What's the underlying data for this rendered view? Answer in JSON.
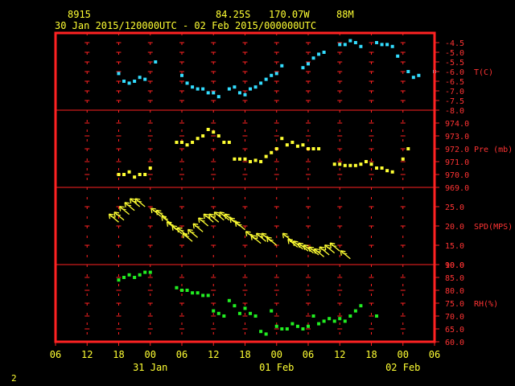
{
  "header": {
    "station_id": "8915",
    "latitude": "84.25S",
    "longitude": "170.07W",
    "elevation": "88M",
    "time_range": "30 Jan 2015/120000UTC - 02 Feb 2015/000000UTC"
  },
  "footer": {
    "page_number": "2"
  },
  "colors": {
    "frame": "#ff2222",
    "temp": "#33ddff",
    "pres": "#ffff33",
    "wind": "#ffff33",
    "rh": "#22ee22",
    "text": "#ffff33"
  },
  "chart_data": [
    {
      "type": "scatter",
      "name": "temperature",
      "ylabel": "T(C)",
      "ylim": [
        -8.0,
        -4.0
      ],
      "yticks": [
        "-4.5",
        "-5.0",
        "-5.5",
        "-6.0",
        "-6.5",
        "-7.0",
        "-7.5",
        "-8.0"
      ],
      "ytick_values": [
        -4.5,
        -5.0,
        -5.5,
        -6.0,
        -6.5,
        -7.0,
        -7.5,
        -8.0
      ],
      "color": "#33ddff",
      "points": [
        [
          12,
          -6.1
        ],
        [
          13,
          -6.5
        ],
        [
          14,
          -6.6
        ],
        [
          15,
          -6.5
        ],
        [
          16,
          -6.3
        ],
        [
          17,
          -6.4
        ],
        [
          19,
          -5.5
        ],
        [
          24,
          -6.2
        ],
        [
          25,
          -6.6
        ],
        [
          26,
          -6.8
        ],
        [
          27,
          -6.9
        ],
        [
          28,
          -6.9
        ],
        [
          29,
          -7.1
        ],
        [
          30,
          -7.1
        ],
        [
          31,
          -7.3
        ],
        [
          33,
          -6.9
        ],
        [
          34,
          -6.8
        ],
        [
          35,
          -7.1
        ],
        [
          36,
          -7.2
        ],
        [
          37,
          -6.9
        ],
        [
          38,
          -6.8
        ],
        [
          39,
          -6.6
        ],
        [
          40,
          -6.4
        ],
        [
          41,
          -6.2
        ],
        [
          42,
          -6.1
        ],
        [
          43,
          -5.7
        ],
        [
          47,
          -5.8
        ],
        [
          48,
          -5.6
        ],
        [
          49,
          -5.3
        ],
        [
          50,
          -5.1
        ],
        [
          51,
          -5.0
        ],
        [
          54,
          -4.6
        ],
        [
          55,
          -4.6
        ],
        [
          56,
          -4.4
        ],
        [
          57,
          -4.5
        ],
        [
          58,
          -4.7
        ],
        [
          61,
          -4.5
        ],
        [
          62,
          -4.6
        ],
        [
          63,
          -4.6
        ],
        [
          64,
          -4.7
        ],
        [
          65,
          -5.2
        ],
        [
          67,
          -6.0
        ],
        [
          68,
          -6.3
        ],
        [
          69,
          -6.2
        ],
        [
          72,
          -6.0
        ]
      ]
    },
    {
      "type": "scatter",
      "name": "pressure",
      "ylabel": "Pre (mb)",
      "ylim": [
        969.0,
        975.0
      ],
      "yticks": [
        "974.0",
        "973.0",
        "972.0",
        "971.0",
        "970.0",
        "969.0"
      ],
      "ytick_values": [
        974.0,
        973.0,
        972.0,
        971.0,
        970.0,
        969.0
      ],
      "color": "#ffff33",
      "points": [
        [
          12,
          970.0
        ],
        [
          13,
          970.0
        ],
        [
          14,
          970.2
        ],
        [
          15,
          969.8
        ],
        [
          16,
          970.0
        ],
        [
          17,
          970.0
        ],
        [
          18,
          970.5
        ],
        [
          23,
          972.5
        ],
        [
          24,
          972.5
        ],
        [
          25,
          972.3
        ],
        [
          26,
          972.5
        ],
        [
          27,
          972.8
        ],
        [
          28,
          973.0
        ],
        [
          29,
          973.5
        ],
        [
          30,
          973.3
        ],
        [
          31,
          973.0
        ],
        [
          32,
          972.5
        ],
        [
          33,
          972.5
        ],
        [
          34,
          971.2
        ],
        [
          35,
          971.2
        ],
        [
          36,
          971.2
        ],
        [
          37,
          971.0
        ],
        [
          38,
          971.1
        ],
        [
          39,
          971.0
        ],
        [
          40,
          971.4
        ],
        [
          41,
          971.7
        ],
        [
          42,
          972.0
        ],
        [
          43,
          972.8
        ],
        [
          44,
          972.3
        ],
        [
          45,
          972.5
        ],
        [
          46,
          972.2
        ],
        [
          47,
          972.3
        ],
        [
          48,
          972.0
        ],
        [
          49,
          972.0
        ],
        [
          50,
          972.0
        ],
        [
          53,
          970.8
        ],
        [
          54,
          970.8
        ],
        [
          55,
          970.7
        ],
        [
          56,
          970.7
        ],
        [
          57,
          970.7
        ],
        [
          58,
          970.8
        ],
        [
          59,
          971.0
        ],
        [
          60,
          970.8
        ],
        [
          61,
          970.5
        ],
        [
          62,
          970.5
        ],
        [
          63,
          970.3
        ],
        [
          64,
          970.2
        ],
        [
          66,
          971.2
        ],
        [
          67,
          972.0
        ]
      ]
    },
    {
      "type": "scatter",
      "name": "wind_speed",
      "ylabel": "SPD(MPS)",
      "ylim": [
        10.0,
        30.0
      ],
      "yticks": [
        "25.0",
        "20.0",
        "15.0",
        "10.0"
      ],
      "ytick_values": [
        25.0,
        20.0,
        15.0,
        10.0
      ],
      "color": "#ffff33",
      "points": [
        [
          12,
          21.0
        ],
        [
          13,
          21.5
        ],
        [
          14,
          23.0
        ],
        [
          15,
          24.0
        ],
        [
          16,
          25.0
        ],
        [
          17,
          25.0
        ],
        [
          20,
          22.5
        ],
        [
          21,
          22.0
        ],
        [
          22,
          20.5
        ],
        [
          23,
          19.0
        ],
        [
          24,
          18.0
        ],
        [
          25,
          17.5
        ],
        [
          26,
          16.0
        ],
        [
          27,
          17.0
        ],
        [
          28,
          18.5
        ],
        [
          29,
          20.0
        ],
        [
          30,
          21.0
        ],
        [
          31,
          21.0
        ],
        [
          32,
          21.5
        ],
        [
          33,
          21.5
        ],
        [
          34,
          21.0
        ],
        [
          35,
          20.0
        ],
        [
          36,
          19.0
        ],
        [
          38,
          16.5
        ],
        [
          39,
          15.5
        ],
        [
          40,
          16.0
        ],
        [
          41,
          16.0
        ],
        [
          42,
          15.0
        ],
        [
          45,
          16.0
        ],
        [
          46,
          14.5
        ],
        [
          47,
          14.0
        ],
        [
          48,
          13.5
        ],
        [
          49,
          13.0
        ],
        [
          50,
          12.5
        ],
        [
          51,
          12.0
        ],
        [
          52,
          12.5
        ],
        [
          53,
          13.0
        ],
        [
          54,
          13.5
        ],
        [
          56,
          11.5
        ]
      ]
    },
    {
      "type": "scatter",
      "name": "relative_humidity",
      "ylabel": "RH(%)",
      "ylim": [
        60.0,
        90.0
      ],
      "yticks": [
        "90.0",
        "85.0",
        "80.0",
        "75.0",
        "70.0",
        "65.0",
        "60.0"
      ],
      "ytick_values": [
        90.0,
        85.0,
        80.0,
        75.0,
        70.0,
        65.0,
        60.0
      ],
      "color": "#22ee22",
      "points": [
        [
          12,
          84
        ],
        [
          13,
          85
        ],
        [
          14,
          86
        ],
        [
          15,
          85
        ],
        [
          16,
          86
        ],
        [
          17,
          87
        ],
        [
          18,
          87
        ],
        [
          23,
          81
        ],
        [
          24,
          80
        ],
        [
          25,
          80
        ],
        [
          26,
          79
        ],
        [
          27,
          79
        ],
        [
          28,
          78
        ],
        [
          29,
          78
        ],
        [
          30,
          72
        ],
        [
          31,
          71
        ],
        [
          32,
          70
        ],
        [
          33,
          76
        ],
        [
          34,
          74
        ],
        [
          35,
          71
        ],
        [
          36,
          73
        ],
        [
          37,
          71
        ],
        [
          38,
          70
        ],
        [
          39,
          64
        ],
        [
          40,
          63
        ],
        [
          41,
          72
        ],
        [
          42,
          66
        ],
        [
          43,
          65
        ],
        [
          44,
          65
        ],
        [
          45,
          67
        ],
        [
          46,
          66
        ],
        [
          47,
          65
        ],
        [
          48,
          66
        ],
        [
          49,
          70
        ],
        [
          50,
          67
        ],
        [
          51,
          68
        ],
        [
          52,
          69
        ],
        [
          53,
          68
        ],
        [
          54,
          69
        ],
        [
          55,
          68
        ],
        [
          56,
          70
        ],
        [
          57,
          72
        ],
        [
          58,
          74
        ],
        [
          61,
          70
        ]
      ]
    }
  ],
  "x_axis": {
    "range": [
      0,
      72
    ],
    "tick_hours": [
      0,
      6,
      12,
      18,
      24,
      30,
      36,
      42,
      48,
      54,
      60,
      66,
      72
    ],
    "tick_labels": [
      "06",
      "12",
      "18",
      "00",
      "06",
      "12",
      "18",
      "00",
      "06",
      "12",
      "18",
      "00",
      "06"
    ],
    "date_labels": [
      {
        "text": "31 Jan",
        "hour": 18
      },
      {
        "text": "01 Feb",
        "hour": 42
      },
      {
        "text": "02 Feb",
        "hour": 66
      }
    ]
  }
}
